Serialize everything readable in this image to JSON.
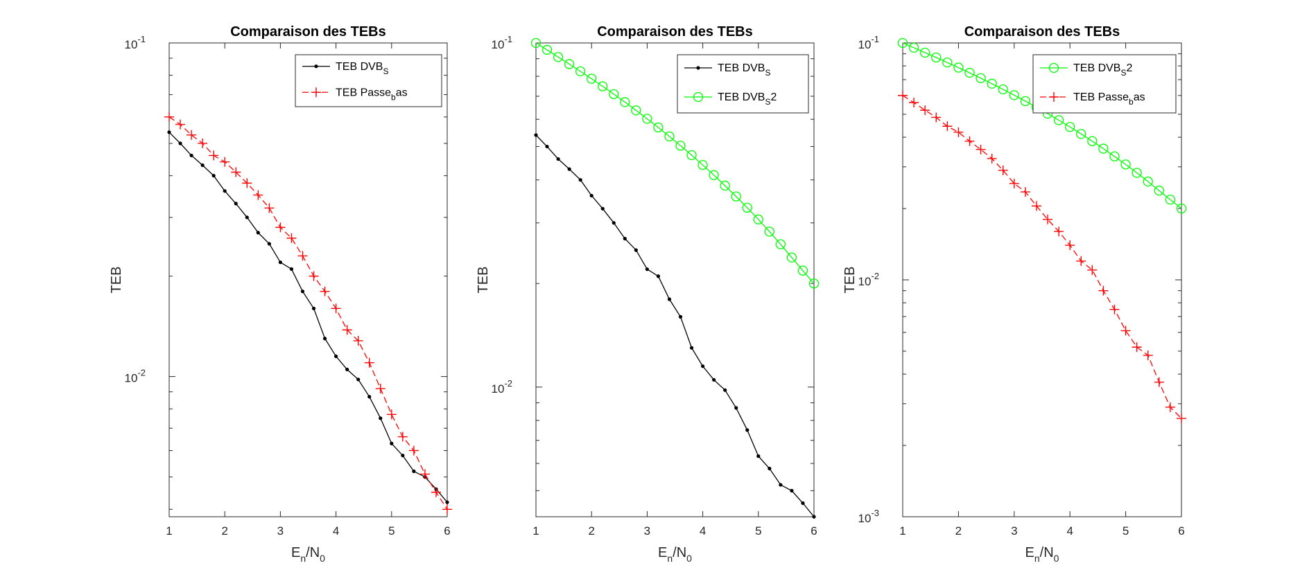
{
  "chart_data": [
    {
      "type": "line",
      "title": "Comparaison des TEBs",
      "xlabel": {
        "main": "E",
        "sub": "n",
        "main2": "/N",
        "sub2": "0"
      },
      "ylabel": "TEB",
      "xlim": [
        1,
        6
      ],
      "ylim": [
        0.0038,
        0.1
      ],
      "yscale": "log",
      "xticks": [
        "1",
        "2",
        "3",
        "4",
        "5",
        "6"
      ],
      "yticks": [
        {
          "value": 0.1,
          "base": "10",
          "exp": "-1"
        },
        {
          "value": 0.01,
          "base": "10",
          "exp": "-2"
        }
      ],
      "legend_position": "top-right",
      "series": [
        {
          "name_parts": [
            {
              "t": "TEB DVB"
            },
            {
              "t": "S",
              "sub": true
            }
          ],
          "color": "#000000",
          "linestyle": "solid",
          "marker": "dot",
          "x": [
            1.0,
            1.2,
            1.4,
            1.6,
            1.8,
            2.0,
            2.2,
            2.4,
            2.6,
            2.8,
            3.0,
            3.2,
            3.4,
            3.6,
            3.8,
            4.0,
            4.2,
            4.4,
            4.6,
            4.8,
            5.0,
            5.2,
            5.4,
            5.6,
            5.8,
            6.0
          ],
          "y": [
            0.054,
            0.05,
            0.046,
            0.043,
            0.04,
            0.036,
            0.033,
            0.03,
            0.027,
            0.025,
            0.022,
            0.021,
            0.018,
            0.016,
            0.013,
            0.0115,
            0.0105,
            0.0098,
            0.0087,
            0.0075,
            0.0063,
            0.0058,
            0.0052,
            0.005,
            0.0046,
            0.0042
          ]
        },
        {
          "name_parts": [
            {
              "t": "TEB Passe"
            },
            {
              "t": "b",
              "sub": true
            },
            {
              "t": "as"
            }
          ],
          "color": "#ff0000",
          "linestyle": "dashed",
          "marker": "plus",
          "x": [
            1.0,
            1.2,
            1.4,
            1.6,
            1.8,
            2.0,
            2.2,
            2.4,
            2.6,
            2.8,
            3.0,
            3.2,
            3.4,
            3.6,
            3.8,
            4.0,
            4.2,
            4.4,
            4.6,
            4.8,
            5.0,
            5.2,
            5.4,
            5.6,
            5.8,
            6.0
          ],
          "y": [
            0.06,
            0.057,
            0.053,
            0.05,
            0.046,
            0.044,
            0.041,
            0.038,
            0.035,
            0.032,
            0.028,
            0.026,
            0.023,
            0.02,
            0.018,
            0.016,
            0.0138,
            0.0128,
            0.011,
            0.0092,
            0.0077,
            0.0066,
            0.006,
            0.0051,
            0.0045,
            0.004
          ]
        }
      ]
    },
    {
      "type": "line",
      "title": "Comparaison des TEBs",
      "xlabel": {
        "main": "E",
        "sub": "n",
        "main2": "/N",
        "sub2": "0"
      },
      "ylabel": "TEB",
      "xlim": [
        1,
        6
      ],
      "ylim": [
        0.0042,
        0.1
      ],
      "yscale": "log",
      "xticks": [
        "1",
        "2",
        "3",
        "4",
        "5",
        "6"
      ],
      "yticks": [
        {
          "value": 0.1,
          "base": "10",
          "exp": "-1"
        },
        {
          "value": 0.01,
          "base": "10",
          "exp": "-2"
        }
      ],
      "legend_position": "top-right",
      "series": [
        {
          "name_parts": [
            {
              "t": "TEB DVB"
            },
            {
              "t": "S",
              "sub": true
            }
          ],
          "color": "#000000",
          "linestyle": "solid",
          "marker": "dot",
          "x": [
            1.0,
            1.2,
            1.4,
            1.6,
            1.8,
            2.0,
            2.2,
            2.4,
            2.6,
            2.8,
            3.0,
            3.2,
            3.4,
            3.6,
            3.8,
            4.0,
            4.2,
            4.4,
            4.6,
            4.8,
            5.0,
            5.2,
            5.4,
            5.6,
            5.8,
            6.0
          ],
          "y": [
            0.054,
            0.05,
            0.046,
            0.043,
            0.04,
            0.036,
            0.033,
            0.03,
            0.027,
            0.025,
            0.022,
            0.021,
            0.018,
            0.016,
            0.013,
            0.0115,
            0.0105,
            0.0098,
            0.0087,
            0.0075,
            0.0063,
            0.0058,
            0.0052,
            0.005,
            0.0046,
            0.0042
          ]
        },
        {
          "name_parts": [
            {
              "t": "TEB DVB"
            },
            {
              "t": "S",
              "sub": true
            },
            {
              "t": "2"
            }
          ],
          "color": "#00ff00",
          "linestyle": "solid",
          "marker": "circle",
          "x": [
            1.0,
            1.2,
            1.4,
            1.6,
            1.8,
            2.0,
            2.2,
            2.4,
            2.6,
            2.8,
            3.0,
            3.2,
            3.4,
            3.6,
            3.8,
            4.0,
            4.2,
            4.4,
            4.6,
            4.8,
            5.0,
            5.2,
            5.4,
            5.6,
            5.8,
            6.0
          ],
          "y": [
            0.1,
            0.0955,
            0.091,
            0.0868,
            0.0827,
            0.0787,
            0.0748,
            0.071,
            0.0673,
            0.0637,
            0.0602,
            0.0568,
            0.0535,
            0.0503,
            0.0472,
            0.0442,
            0.0413,
            0.0385,
            0.0358,
            0.0332,
            0.0307,
            0.0283,
            0.026,
            0.0238,
            0.0218,
            0.02
          ]
        }
      ]
    },
    {
      "type": "line",
      "title": "Comparaison des TEBs",
      "xlabel": {
        "main": "E",
        "sub": "n",
        "main2": "/N",
        "sub2": "0"
      },
      "ylabel": "TEB",
      "xlim": [
        1,
        6
      ],
      "ylim": [
        0.001,
        0.1
      ],
      "yscale": "log",
      "xticks": [
        "1",
        "2",
        "3",
        "4",
        "5",
        "6"
      ],
      "yticks": [
        {
          "value": 0.1,
          "base": "10",
          "exp": "-1"
        },
        {
          "value": 0.01,
          "base": "10",
          "exp": "-2"
        },
        {
          "value": 0.001,
          "base": "10",
          "exp": "-3"
        }
      ],
      "legend_position": "top-right",
      "series": [
        {
          "name_parts": [
            {
              "t": "TEB DVB"
            },
            {
              "t": "S",
              "sub": true
            },
            {
              "t": "2"
            }
          ],
          "color": "#00ff00",
          "linestyle": "solid",
          "marker": "circle",
          "x": [
            1.0,
            1.2,
            1.4,
            1.6,
            1.8,
            2.0,
            2.2,
            2.4,
            2.6,
            2.8,
            3.0,
            3.2,
            3.4,
            3.6,
            3.8,
            4.0,
            4.2,
            4.4,
            4.6,
            4.8,
            5.0,
            5.2,
            5.4,
            5.6,
            5.8,
            6.0
          ],
          "y": [
            0.1,
            0.0955,
            0.091,
            0.0868,
            0.0827,
            0.0787,
            0.0748,
            0.071,
            0.0673,
            0.0637,
            0.0602,
            0.0568,
            0.0535,
            0.0503,
            0.0472,
            0.0442,
            0.0413,
            0.0385,
            0.0358,
            0.0332,
            0.0307,
            0.0283,
            0.026,
            0.0238,
            0.0218,
            0.02
          ]
        },
        {
          "name_parts": [
            {
              "t": "TEB Passe"
            },
            {
              "t": "b",
              "sub": true
            },
            {
              "t": "as"
            }
          ],
          "color": "#ff0000",
          "linestyle": "dashed",
          "marker": "plus",
          "x": [
            1.0,
            1.2,
            1.4,
            1.6,
            1.8,
            2.0,
            2.2,
            2.4,
            2.6,
            2.8,
            3.0,
            3.2,
            3.4,
            3.6,
            3.8,
            4.0,
            4.2,
            4.4,
            4.6,
            4.8,
            5.0,
            5.2,
            5.4,
            5.6,
            5.8,
            6.0
          ],
          "y": [
            0.06,
            0.056,
            0.052,
            0.0485,
            0.0445,
            0.042,
            0.0385,
            0.0355,
            0.0325,
            0.029,
            0.0255,
            0.0235,
            0.0205,
            0.018,
            0.016,
            0.014,
            0.012,
            0.011,
            0.009,
            0.0075,
            0.0061,
            0.0052,
            0.0048,
            0.0037,
            0.0029,
            0.0026
          ]
        }
      ]
    }
  ]
}
